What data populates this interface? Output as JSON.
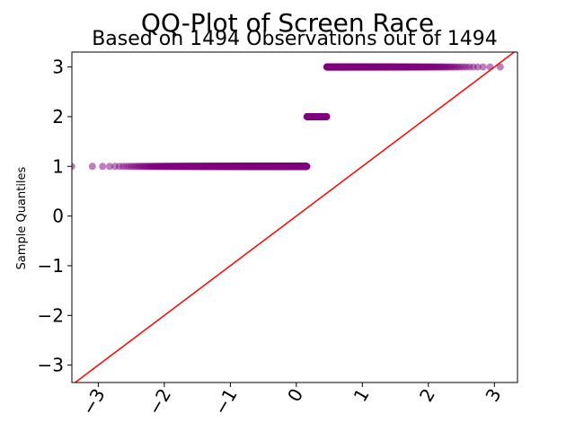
{
  "chart_data": {
    "type": "scatter",
    "title": "QQ-Plot of Screen Race",
    "subtitle": "Based on 1494 Observations out of 1494",
    "xlabel": "",
    "ylabel": "Sample Quantiles",
    "xlim": [
      -3.4,
      3.35
    ],
    "ylim": [
      -3.35,
      3.3
    ],
    "xticks": [
      -3,
      -2,
      -1,
      0,
      1,
      2,
      3
    ],
    "xtick_labels": [
      "−3",
      "−2",
      "−1",
      "0",
      "1",
      "2",
      "3"
    ],
    "yticks": [
      -3,
      -2,
      -1,
      0,
      1,
      2,
      3
    ],
    "ytick_labels": [
      "−3",
      "−2",
      "−1",
      "0",
      "1",
      "2",
      "3"
    ],
    "xtick_rotation": 60,
    "grid": false,
    "series": [
      {
        "kind": "points",
        "color": "#800080",
        "segments": [
          {
            "y": 1,
            "x_from": -3.2,
            "x_to": 0.4,
            "count": 842
          },
          {
            "y": 2,
            "x_from": 0.38,
            "x_to": 0.88,
            "count": 170
          },
          {
            "y": 3,
            "x_from": 0.88,
            "x_to": 3.2,
            "count": 482
          }
        ]
      },
      {
        "kind": "reference-line",
        "color": "#ff0000",
        "slope": 1,
        "intercept": 0
      }
    ]
  }
}
